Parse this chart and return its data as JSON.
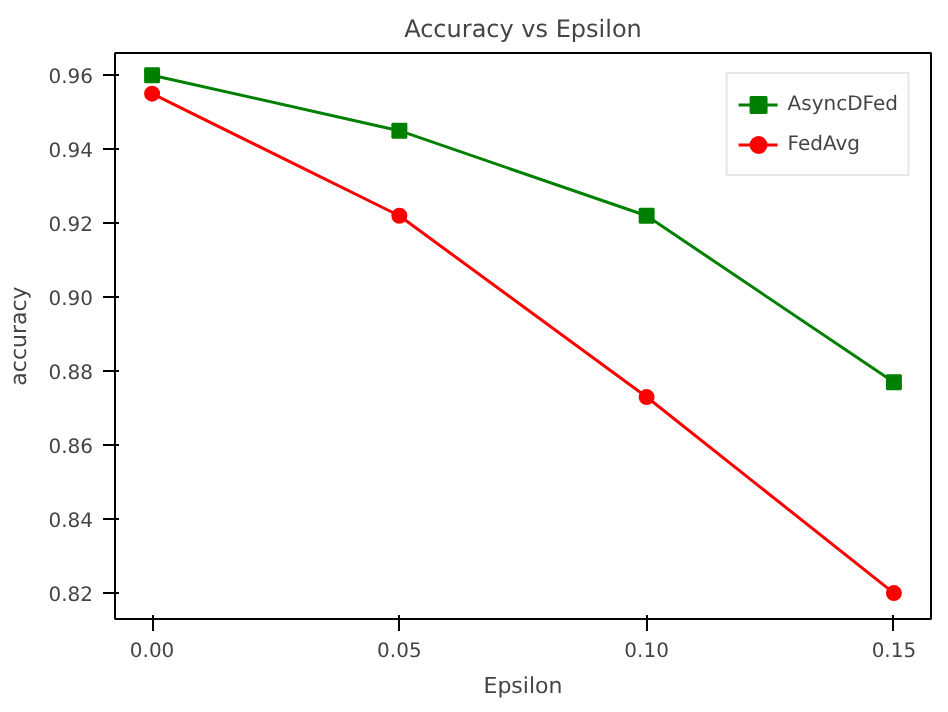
{
  "chart_data": {
    "type": "line",
    "title": "Accuracy vs Epsilon",
    "xlabel": "Epsilon",
    "ylabel": "accuracy",
    "x": [
      0.0,
      0.05,
      0.1,
      0.15
    ],
    "series": [
      {
        "name": "AsyncDFed",
        "color": "#008000",
        "marker": "square",
        "values": [
          0.96,
          0.945,
          0.922,
          0.877
        ]
      },
      {
        "name": "FedAvg",
        "color": "#ff0000",
        "marker": "circle",
        "values": [
          0.955,
          0.922,
          0.873,
          0.82
        ]
      }
    ],
    "xlim": [
      -0.0075,
      0.1575
    ],
    "ylim": [
      0.813,
      0.966
    ],
    "xticks": [
      {
        "value": 0.0,
        "label": "0.00"
      },
      0.05,
      {
        "value": 0.1,
        "label": "0.10"
      },
      0.15
    ],
    "yticks": [
      {
        "value": 0.82,
        "label": "0.82"
      },
      {
        "value": 0.84,
        "label": "0.84"
      },
      {
        "value": 0.86,
        "label": "0.86"
      },
      {
        "value": 0.88,
        "label": "0.88"
      },
      {
        "value": 0.9,
        "label": "0.90"
      },
      {
        "value": 0.92,
        "label": "0.92"
      },
      {
        "value": 0.94,
        "label": "0.94"
      },
      {
        "value": 0.96,
        "label": "0.96"
      }
    ],
    "grid": false,
    "legend": "top right",
    "line_style": "solid"
  }
}
